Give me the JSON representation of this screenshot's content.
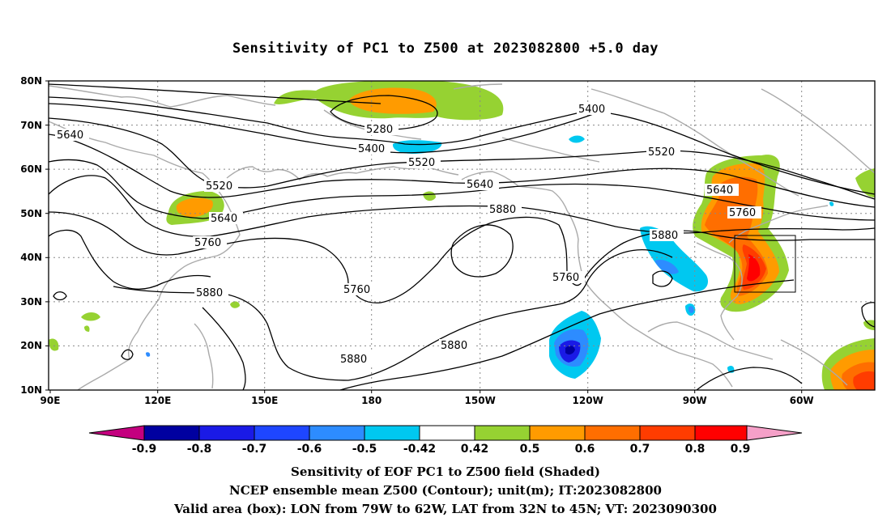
{
  "title": "Sensitivity of PC1 to Z500 at 2023082800 +5.0 day",
  "axes": {
    "y_ticks": [
      "80N",
      "70N",
      "60N",
      "50N",
      "40N",
      "30N",
      "20N",
      "10N"
    ],
    "x_ticks": [
      "90E",
      "120E",
      "150E",
      "180",
      "150W",
      "120W",
      "90W",
      "60W"
    ]
  },
  "colorbar": {
    "labels": [
      "-0.9",
      "-0.8",
      "-0.7",
      "-0.6",
      "-0.5",
      "-0.42",
      "0.42",
      "0.5",
      "0.6",
      "0.7",
      "0.8",
      "0.9"
    ],
    "colors": {
      "lt_minus_0_9": "#c4007f",
      "m0_9_m0_8": "#0000a0",
      "m0_8_m0_7": "#1a1ae6",
      "m0_7_m0_6": "#1e46ff",
      "m0_6_m0_5": "#2d8cff",
      "m0_5_m0_42": "#00c8f0",
      "neutral": "#ffffff",
      "p0_42_p0_5": "#96d232",
      "p0_5_p0_6": "#ff9b00",
      "p0_6_p0_7": "#ff6e00",
      "p0_7_p0_8": "#ff3c00",
      "p0_8_p0_9": "#ff0000",
      "gt_0_9": "#f5a0c8"
    }
  },
  "contour_labels": [
    "5640",
    "5520",
    "5640",
    "5760",
    "5880",
    "5280",
    "5400",
    "5520",
    "5640",
    "5880",
    "5760",
    "5880",
    "5760",
    "5400",
    "5520",
    "5640",
    "5760",
    "5880"
  ],
  "footer": {
    "line1": "Sensitivity of EOF PC1 to Z500 field (Shaded)",
    "line2": "NCEP ensemble mean Z500 (Contour); unit(m); IT:2023082800",
    "line3": "Valid area (box): LON from 79W to 62W, LAT from 32N to 45N; VT: 2023090300"
  }
}
